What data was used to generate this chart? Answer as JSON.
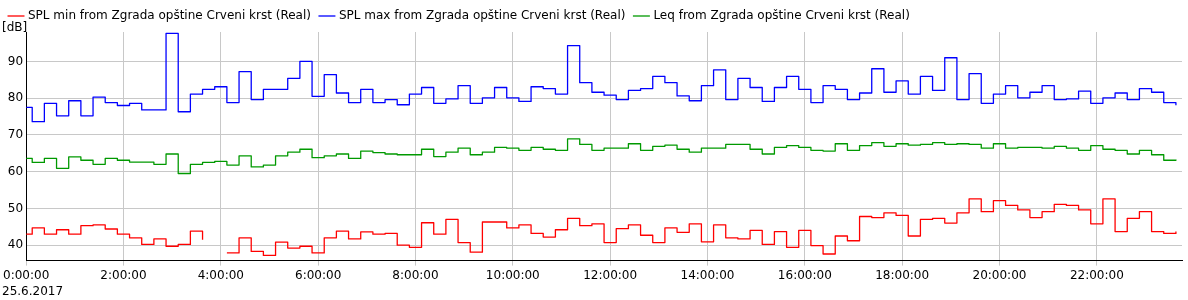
{
  "chart_data": {
    "type": "step",
    "ylabel": "[dB]",
    "annotations": [
      "25.6.2017"
    ],
    "legend": "top left",
    "grid": true,
    "xlim": [
      0,
      23.75
    ],
    "ylim": [
      35.8,
      98
    ],
    "xticks": [
      {
        "value": 0,
        "label": "0:00:00"
      },
      {
        "value": 2,
        "label": "2:00:00"
      },
      {
        "value": 4,
        "label": "4:00:00"
      },
      {
        "value": 6,
        "label": "6:00:00"
      },
      {
        "value": 8,
        "label": "8:00:00"
      },
      {
        "value": 10,
        "label": "10:00:00"
      },
      {
        "value": 12,
        "label": "12:00:00"
      },
      {
        "value": 14,
        "label": "14:00:00"
      },
      {
        "value": 16,
        "label": "16:00:00"
      },
      {
        "value": 18,
        "label": "18:00:00"
      },
      {
        "value": 20,
        "label": "20:00:00"
      },
      {
        "value": 22,
        "label": "22:00:00"
      }
    ],
    "yticks": [
      40,
      50,
      60,
      70,
      80,
      90
    ],
    "x": [
      0,
      0.125,
      0.375,
      0.625,
      0.875,
      1.125,
      1.375,
      1.625,
      1.875,
      2.125,
      2.375,
      2.625,
      2.875,
      3.125,
      3.375,
      3.625,
      3.875,
      4.125,
      4.375,
      4.625,
      4.875,
      5.125,
      5.375,
      5.625,
      5.875,
      6.125,
      6.375,
      6.625,
      6.875,
      7.125,
      7.375,
      7.625,
      7.875,
      8.125,
      8.375,
      8.625,
      8.875,
      9.125,
      9.375,
      9.625,
      9.875,
      10.125,
      10.375,
      10.625,
      10.875,
      11.125,
      11.375,
      11.625,
      11.875,
      12.125,
      12.375,
      12.625,
      12.875,
      13.125,
      13.375,
      13.625,
      13.875,
      14.125,
      14.375,
      14.625,
      14.875,
      15.125,
      15.375,
      15.625,
      15.875,
      16.125,
      16.375,
      16.625,
      16.875,
      17.125,
      17.375,
      17.625,
      17.875,
      18.125,
      18.375,
      18.625,
      18.875,
      19.125,
      19.375,
      19.625,
      19.875,
      20.125,
      20.375,
      20.625,
      20.875,
      21.125,
      21.375,
      21.625,
      21.875,
      22.125,
      22.375,
      22.625,
      22.875,
      23.125,
      23.375,
      23.625
    ],
    "series": [
      {
        "name": "SPL min from Zgrada opštine Crveni krst (Real)",
        "color": "#ff0000",
        "values": [
          43.0,
          44.7,
          43.0,
          44.2,
          43.0,
          45.3,
          45.5,
          44.4,
          43.0,
          42.0,
          40.2,
          41.7,
          39.7,
          40.2,
          43.8,
          41.5,
          null,
          37.9,
          42.0,
          38.3,
          37.2,
          40.8,
          39.2,
          39.7,
          37.9,
          42.0,
          43.8,
          41.7,
          43.6,
          43.0,
          43.2,
          40.0,
          39.4,
          46.1,
          43.0,
          47.0,
          40.7,
          38.1,
          46.3,
          46.3,
          44.7,
          45.5,
          43.2,
          42.2,
          44.2,
          47.3,
          45.3,
          45.8,
          40.7,
          44.5,
          45.5,
          42.7,
          40.7,
          44.7,
          43.5,
          45.8,
          40.9,
          45.5,
          42.0,
          41.7,
          44.0,
          40.2,
          43.7,
          39.4,
          44.0,
          39.9,
          37.6,
          42.5,
          41.2,
          47.8,
          47.5,
          48.8,
          48.1,
          42.5,
          47.0,
          47.3,
          46.0,
          48.8,
          52.6,
          49.1,
          52.1,
          50.8,
          49.6,
          47.5,
          49.1,
          51.1,
          50.8,
          49.6,
          45.8,
          52.6,
          43.7,
          47.3,
          49.1,
          43.7,
          43.2,
          43.7
        ]
      },
      {
        "name": "SPL max from Zgrada opštine Crveni krst (Real)",
        "color": "#0000ff",
        "values": [
          77.5,
          73.6,
          78.6,
          75.2,
          79.3,
          75.2,
          80.3,
          78.8,
          78.0,
          78.6,
          76.8,
          76.8,
          97.6,
          76.3,
          81.1,
          82.4,
          83.1,
          78.8,
          87.2,
          79.6,
          82.4,
          82.4,
          85.4,
          90.0,
          80.5,
          86.4,
          81.4,
          78.8,
          82.4,
          78.8,
          79.6,
          78.2,
          81.1,
          82.9,
          78.6,
          79.8,
          83.4,
          78.6,
          80.1,
          82.9,
          80.1,
          79.1,
          83.1,
          82.6,
          81.1,
          94.3,
          84.2,
          81.6,
          80.8,
          79.6,
          82.1,
          82.6,
          85.9,
          84.2,
          80.6,
          79.3,
          83.4,
          87.7,
          79.6,
          85.4,
          82.9,
          79.1,
          82.9,
          85.9,
          82.4,
          78.8,
          83.4,
          82.4,
          79.6,
          81.4,
          88.0,
          81.6,
          84.7,
          81.1,
          85.9,
          82.1,
          91.0,
          79.6,
          86.7,
          78.6,
          81.1,
          83.4,
          80.1,
          81.6,
          83.4,
          79.6,
          79.8,
          81.9,
          78.6,
          80.1,
          81.4,
          79.6,
          82.6,
          81.6,
          78.8,
          78.1
        ]
      },
      {
        "name": "Leq from Zgrada opštine Crveni krst (Real)",
        "color": "#009900",
        "values": [
          63.6,
          62.5,
          63.6,
          60.9,
          64.0,
          63.1,
          62.0,
          63.6,
          63.1,
          62.6,
          62.6,
          62.0,
          64.8,
          59.5,
          62.0,
          62.5,
          62.8,
          61.8,
          64.3,
          61.3,
          61.8,
          64.3,
          65.3,
          66.1,
          63.8,
          64.3,
          64.8,
          63.6,
          65.6,
          65.2,
          64.8,
          64.6,
          64.6,
          66.1,
          64.1,
          65.3,
          66.4,
          64.6,
          65.3,
          66.6,
          66.4,
          65.8,
          66.6,
          66.1,
          65.8,
          68.9,
          67.4,
          65.8,
          66.4,
          66.4,
          67.6,
          65.8,
          66.9,
          67.2,
          66.1,
          65.3,
          66.4,
          66.4,
          67.4,
          67.4,
          66.1,
          64.8,
          66.6,
          67.1,
          66.6,
          65.8,
          65.6,
          67.6,
          65.8,
          67.1,
          67.9,
          66.9,
          67.6,
          67.2,
          67.4,
          67.9,
          67.4,
          67.6,
          67.4,
          66.4,
          67.6,
          66.4,
          66.6,
          66.6,
          66.4,
          66.9,
          66.4,
          65.8,
          67.1,
          66.1,
          65.8,
          64.8,
          65.8,
          64.6,
          63.1,
          63.3
        ]
      }
    ]
  }
}
